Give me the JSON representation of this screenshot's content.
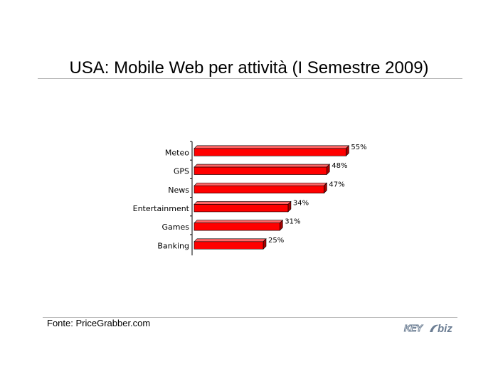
{
  "title": "USA: Mobile Web per attività (I Semestre 2009)",
  "source": "Fonte: PriceGrabber.com",
  "logo": {
    "text_key": "KEY",
    "text_biz": "biz"
  },
  "colors": {
    "bar": "#ff0000",
    "bar_top": "#ff6666",
    "bar_side": "#a80000",
    "bar_outline": "#000000"
  },
  "chart_data": {
    "type": "bar",
    "orientation": "horizontal",
    "categories": [
      "Meteo",
      "GPS",
      "News",
      "Entertainment",
      "Games",
      "Banking"
    ],
    "values": [
      55,
      48,
      47,
      34,
      31,
      25
    ],
    "value_labels": [
      "55%",
      "48%",
      "47%",
      "34%",
      "31%",
      "25%"
    ],
    "unit": "%",
    "xlim": [
      0,
      100
    ],
    "grid": false,
    "legend": "none",
    "style": "3d"
  }
}
